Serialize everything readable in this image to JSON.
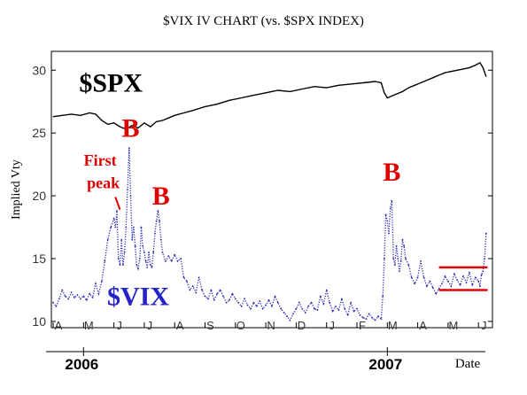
{
  "chart_data": {
    "type": "line",
    "title": "$VIX IV CHART (vs. $SPX INDEX)",
    "xlabel": "Date",
    "ylabel": "Implied Vty",
    "ylim": [
      9.5,
      31.5
    ],
    "yticks": [
      10,
      15,
      20,
      25,
      30
    ],
    "months": [
      "A",
      "M",
      "J",
      "J",
      "A",
      "S",
      "O",
      "N",
      "D",
      "J",
      "F",
      "M",
      "A",
      "M",
      "J"
    ],
    "years": [
      {
        "label": "2006",
        "month_index": 1
      },
      {
        "label": "2007",
        "month_index": 11
      }
    ],
    "series": [
      {
        "name": "$VIX",
        "color": "#2a2ab5",
        "style": "dotted",
        "points": [
          [
            0.0,
            11.5
          ],
          [
            0.1,
            11.2
          ],
          [
            0.2,
            11.8
          ],
          [
            0.3,
            12.5
          ],
          [
            0.4,
            12.0
          ],
          [
            0.5,
            11.8
          ],
          [
            0.6,
            12.3
          ],
          [
            0.7,
            11.9
          ],
          [
            0.8,
            12.1
          ],
          [
            0.9,
            11.8
          ],
          [
            1.0,
            12.0
          ],
          [
            1.1,
            11.7
          ],
          [
            1.2,
            12.2
          ],
          [
            1.3,
            11.9
          ],
          [
            1.4,
            13.0
          ],
          [
            1.5,
            12.2
          ],
          [
            1.6,
            13.2
          ],
          [
            1.7,
            14.8
          ],
          [
            1.8,
            16.5
          ],
          [
            1.9,
            17.5
          ],
          [
            2.0,
            18.2
          ],
          [
            2.05,
            17.5
          ],
          [
            2.1,
            18.8
          ],
          [
            2.15,
            15.0
          ],
          [
            2.2,
            14.5
          ],
          [
            2.25,
            16.5
          ],
          [
            2.3,
            14.5
          ],
          [
            2.35,
            15.5
          ],
          [
            2.4,
            17.5
          ],
          [
            2.45,
            20.5
          ],
          [
            2.5,
            23.8
          ],
          [
            2.55,
            20.0
          ],
          [
            2.6,
            16.5
          ],
          [
            2.65,
            17.5
          ],
          [
            2.7,
            16.0
          ],
          [
            2.75,
            14.5
          ],
          [
            2.8,
            14.2
          ],
          [
            2.85,
            15.0
          ],
          [
            2.9,
            17.5
          ],
          [
            2.95,
            16.0
          ],
          [
            3.0,
            15.5
          ],
          [
            3.05,
            14.8
          ],
          [
            3.1,
            14.3
          ],
          [
            3.15,
            15.5
          ],
          [
            3.2,
            14.5
          ],
          [
            3.25,
            14.3
          ],
          [
            3.3,
            15.5
          ],
          [
            3.35,
            17.0
          ],
          [
            3.4,
            18.0
          ],
          [
            3.45,
            18.8
          ],
          [
            3.5,
            18.0
          ],
          [
            3.55,
            16.5
          ],
          [
            3.6,
            15.5
          ],
          [
            3.7,
            14.8
          ],
          [
            3.8,
            15.2
          ],
          [
            3.9,
            14.8
          ],
          [
            4.0,
            15.3
          ],
          [
            4.1,
            14.8
          ],
          [
            4.2,
            15.0
          ],
          [
            4.3,
            13.5
          ],
          [
            4.4,
            13.2
          ],
          [
            4.5,
            12.5
          ],
          [
            4.6,
            12.8
          ],
          [
            4.7,
            12.3
          ],
          [
            4.8,
            13.5
          ],
          [
            4.9,
            12.5
          ],
          [
            5.0,
            12.0
          ],
          [
            5.1,
            11.8
          ],
          [
            5.2,
            12.5
          ],
          [
            5.3,
            11.7
          ],
          [
            5.4,
            12.2
          ],
          [
            5.5,
            12.5
          ],
          [
            5.6,
            12.0
          ],
          [
            5.7,
            11.5
          ],
          [
            5.8,
            11.7
          ],
          [
            5.9,
            12.2
          ],
          [
            6.0,
            11.8
          ],
          [
            6.1,
            11.5
          ],
          [
            6.2,
            11.2
          ],
          [
            6.3,
            11.8
          ],
          [
            6.4,
            11.3
          ],
          [
            6.5,
            11.0
          ],
          [
            6.6,
            11.5
          ],
          [
            6.7,
            11.2
          ],
          [
            6.8,
            11.6
          ],
          [
            6.9,
            11.0
          ],
          [
            7.0,
            11.3
          ],
          [
            7.1,
            11.7
          ],
          [
            7.2,
            11.2
          ],
          [
            7.3,
            12.0
          ],
          [
            7.4,
            11.5
          ],
          [
            7.5,
            11.0
          ],
          [
            7.6,
            10.7
          ],
          [
            7.7,
            10.4
          ],
          [
            7.8,
            10.1
          ],
          [
            7.9,
            10.6
          ],
          [
            8.0,
            11.0
          ],
          [
            8.1,
            11.5
          ],
          [
            8.2,
            11.0
          ],
          [
            8.3,
            10.7
          ],
          [
            8.4,
            11.2
          ],
          [
            8.5,
            11.5
          ],
          [
            8.6,
            11.0
          ],
          [
            8.7,
            10.9
          ],
          [
            8.8,
            12.0
          ],
          [
            8.9,
            11.4
          ],
          [
            9.0,
            12.5
          ],
          [
            9.1,
            11.5
          ],
          [
            9.2,
            10.8
          ],
          [
            9.3,
            11.2
          ],
          [
            9.4,
            10.9
          ],
          [
            9.5,
            11.8
          ],
          [
            9.6,
            11.0
          ],
          [
            9.7,
            10.5
          ],
          [
            9.8,
            11.5
          ],
          [
            9.9,
            10.8
          ],
          [
            10.0,
            11.0
          ],
          [
            10.1,
            10.5
          ],
          [
            10.2,
            10.3
          ],
          [
            10.3,
            10.2
          ],
          [
            10.4,
            10.6
          ],
          [
            10.5,
            10.3
          ],
          [
            10.6,
            10.1
          ],
          [
            10.7,
            10.4
          ],
          [
            10.8,
            10.2
          ],
          [
            10.85,
            12.0
          ],
          [
            10.9,
            15.0
          ],
          [
            10.95,
            18.5
          ],
          [
            11.0,
            18.0
          ],
          [
            11.05,
            17.0
          ],
          [
            11.1,
            19.0
          ],
          [
            11.15,
            19.6
          ],
          [
            11.2,
            15.0
          ],
          [
            11.25,
            14.5
          ],
          [
            11.3,
            16.0
          ],
          [
            11.35,
            15.0
          ],
          [
            11.4,
            14.0
          ],
          [
            11.45,
            14.8
          ],
          [
            11.5,
            16.5
          ],
          [
            11.55,
            16.0
          ],
          [
            11.6,
            15.0
          ],
          [
            11.7,
            14.5
          ],
          [
            11.8,
            13.5
          ],
          [
            11.9,
            13.0
          ],
          [
            12.0,
            13.5
          ],
          [
            12.1,
            14.8
          ],
          [
            12.2,
            13.5
          ],
          [
            12.3,
            12.8
          ],
          [
            12.4,
            13.2
          ],
          [
            12.5,
            12.7
          ],
          [
            12.6,
            12.2
          ],
          [
            12.7,
            12.6
          ],
          [
            12.8,
            13.0
          ],
          [
            12.9,
            13.6
          ],
          [
            13.0,
            13.2
          ],
          [
            13.1,
            12.8
          ],
          [
            13.2,
            13.8
          ],
          [
            13.3,
            13.3
          ],
          [
            13.4,
            12.9
          ],
          [
            13.5,
            13.6
          ],
          [
            13.6,
            13.1
          ],
          [
            13.7,
            13.9
          ],
          [
            13.8,
            12.9
          ],
          [
            13.9,
            13.5
          ],
          [
            14.0,
            13.2
          ],
          [
            14.05,
            12.8
          ],
          [
            14.1,
            13.7
          ],
          [
            14.15,
            14.0
          ],
          [
            14.2,
            15.0
          ],
          [
            14.25,
            17.0
          ]
        ]
      },
      {
        "name": "$SPX",
        "color": "#000000",
        "style": "solid",
        "points": [
          [
            0.0,
            26.3
          ],
          [
            0.3,
            26.4
          ],
          [
            0.6,
            26.5
          ],
          [
            0.9,
            26.4
          ],
          [
            1.2,
            26.6
          ],
          [
            1.4,
            26.5
          ],
          [
            1.6,
            26.0
          ],
          [
            1.8,
            25.7
          ],
          [
            2.0,
            25.8
          ],
          [
            2.2,
            25.5
          ],
          [
            2.4,
            25.3
          ],
          [
            2.6,
            25.6
          ],
          [
            2.8,
            25.4
          ],
          [
            3.0,
            25.8
          ],
          [
            3.2,
            25.5
          ],
          [
            3.4,
            25.9
          ],
          [
            3.6,
            26.0
          ],
          [
            3.8,
            26.2
          ],
          [
            4.0,
            26.4
          ],
          [
            4.3,
            26.6
          ],
          [
            4.6,
            26.8
          ],
          [
            5.0,
            27.1
          ],
          [
            5.4,
            27.3
          ],
          [
            5.8,
            27.6
          ],
          [
            6.2,
            27.8
          ],
          [
            6.6,
            28.0
          ],
          [
            7.0,
            28.2
          ],
          [
            7.4,
            28.4
          ],
          [
            7.8,
            28.3
          ],
          [
            8.2,
            28.5
          ],
          [
            8.6,
            28.7
          ],
          [
            9.0,
            28.6
          ],
          [
            9.4,
            28.8
          ],
          [
            9.8,
            28.9
          ],
          [
            10.2,
            29.0
          ],
          [
            10.6,
            29.1
          ],
          [
            10.8,
            29.0
          ],
          [
            10.9,
            28.2
          ],
          [
            11.0,
            27.8
          ],
          [
            11.1,
            27.9
          ],
          [
            11.3,
            28.1
          ],
          [
            11.5,
            28.3
          ],
          [
            11.7,
            28.6
          ],
          [
            11.9,
            28.8
          ],
          [
            12.1,
            29.0
          ],
          [
            12.3,
            29.2
          ],
          [
            12.5,
            29.4
          ],
          [
            12.7,
            29.6
          ],
          [
            12.9,
            29.8
          ],
          [
            13.1,
            29.9
          ],
          [
            13.3,
            30.0
          ],
          [
            13.5,
            30.1
          ],
          [
            13.7,
            30.2
          ],
          [
            13.9,
            30.4
          ],
          [
            14.05,
            30.6
          ],
          [
            14.15,
            30.2
          ],
          [
            14.25,
            29.5
          ]
        ]
      }
    ],
    "annotations": [
      {
        "text": "$SPX",
        "x": 1.9,
        "y": 28.3,
        "color": "#000000",
        "size": 30
      },
      {
        "text": "$VIX",
        "x": 2.8,
        "y": 11.3,
        "color": "#2323c8",
        "size": 30
      },
      {
        "text": "B",
        "x": 2.55,
        "y": 24.7,
        "color": "#e00000",
        "size": 30
      },
      {
        "text": "B",
        "x": 3.55,
        "y": 19.3,
        "color": "#e00000",
        "size": 30
      },
      {
        "text": "B",
        "x": 11.15,
        "y": 21.2,
        "color": "#e00000",
        "size": 30
      },
      {
        "text": "First",
        "x": 1.55,
        "y": 22.4,
        "color": "#e00000",
        "size": 18
      },
      {
        "text": "peak",
        "x": 1.65,
        "y": 20.6,
        "color": "#e00000",
        "size": 18
      }
    ],
    "callout": {
      "from": [
        2.05,
        19.9
      ],
      "to": [
        2.2,
        18.9
      ],
      "color": "#e00000"
    },
    "hlines": [
      {
        "y": 14.3,
        "x0": 12.7,
        "x1": 14.3,
        "color": "#e00000"
      },
      {
        "y": 12.5,
        "x0": 12.7,
        "x1": 14.3,
        "color": "#e00000"
      }
    ]
  }
}
